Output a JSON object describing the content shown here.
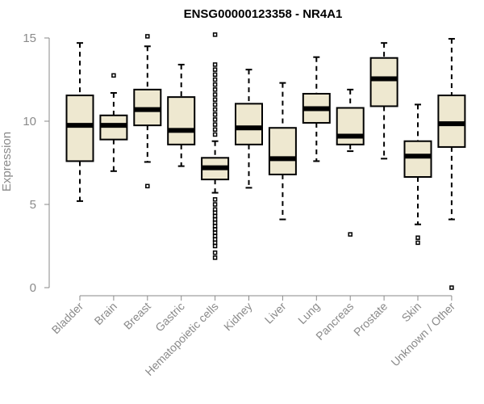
{
  "chart_data": {
    "type": "boxplot",
    "title": "ENSG00000123358 - NR4A1",
    "xlabel": "",
    "ylabel": "Expression",
    "ylim": [
      0,
      15
    ],
    "yticks": [
      0,
      5,
      10,
      15
    ],
    "box_fill": "#eee8d0",
    "axis_color": "#8a8a8a",
    "categories": [
      "Bladder",
      "Brain",
      "Breast",
      "Gastric",
      "Hematopoietic cells",
      "Kidney",
      "Liver",
      "Lung",
      "Pancreas",
      "Prostate",
      "Skin",
      "Unknown / Other"
    ],
    "boxes": [
      {
        "min": 5.2,
        "q1": 7.6,
        "median": 9.75,
        "q3": 11.55,
        "max": 14.7,
        "outliers": []
      },
      {
        "min": 7.0,
        "q1": 8.9,
        "median": 9.75,
        "q3": 10.35,
        "max": 11.7,
        "outliers": [
          12.75
        ]
      },
      {
        "min": 7.55,
        "q1": 9.75,
        "median": 10.7,
        "q3": 11.9,
        "max": 14.5,
        "outliers": [
          6.1,
          15.1
        ]
      },
      {
        "min": 7.3,
        "q1": 8.6,
        "median": 9.45,
        "q3": 11.45,
        "max": 13.4,
        "outliers": []
      },
      {
        "min": 5.7,
        "q1": 6.5,
        "median": 7.2,
        "q3": 7.8,
        "max": 8.8,
        "outliers": [
          1.8,
          2.1,
          2.5,
          2.7,
          2.9,
          3.1,
          3.3,
          3.5,
          3.7,
          3.9,
          4.1,
          4.3,
          4.5,
          4.7,
          5.0,
          5.3,
          9.2,
          9.5,
          9.8,
          10.1,
          10.4,
          10.7,
          11.0,
          11.3,
          11.6,
          11.9,
          12.2,
          12.5,
          12.8,
          13.1,
          13.4,
          15.2
        ]
      },
      {
        "min": 6.0,
        "q1": 8.6,
        "median": 9.6,
        "q3": 11.05,
        "max": 13.1,
        "outliers": []
      },
      {
        "min": 4.1,
        "q1": 6.8,
        "median": 7.75,
        "q3": 9.6,
        "max": 12.3,
        "outliers": []
      },
      {
        "min": 7.6,
        "q1": 9.9,
        "median": 10.75,
        "q3": 11.65,
        "max": 13.85,
        "outliers": []
      },
      {
        "min": 8.2,
        "q1": 8.6,
        "median": 9.1,
        "q3": 10.8,
        "max": 11.9,
        "outliers": [
          3.2
        ]
      },
      {
        "min": 7.75,
        "q1": 10.9,
        "median": 12.55,
        "q3": 13.8,
        "max": 14.7,
        "outliers": []
      },
      {
        "min": 3.8,
        "q1": 6.65,
        "median": 7.9,
        "q3": 8.8,
        "max": 11.0,
        "outliers": [
          2.7,
          3.0
        ]
      },
      {
        "min": 4.1,
        "q1": 8.45,
        "median": 9.85,
        "q3": 11.55,
        "max": 14.95,
        "outliers": [
          0.0
        ]
      }
    ]
  }
}
